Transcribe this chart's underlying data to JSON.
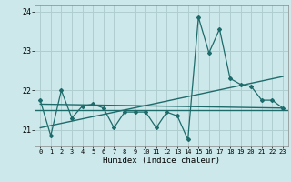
{
  "title": "",
  "xlabel": "Humidex (Indice chaleur)",
  "ylabel": "",
  "bg_color": "#cce8ea",
  "grid_color": "#b0ced0",
  "line_color": "#1e6b6b",
  "x_data": [
    0,
    1,
    2,
    3,
    4,
    5,
    6,
    7,
    8,
    9,
    10,
    11,
    12,
    13,
    14,
    15,
    16,
    17,
    18,
    19,
    20,
    21,
    22,
    23
  ],
  "y_zigzag": [
    21.75,
    20.85,
    22.0,
    21.3,
    21.6,
    21.65,
    21.55,
    21.05,
    21.45,
    21.45,
    21.45,
    21.05,
    21.45,
    21.35,
    20.75,
    23.85,
    22.95,
    23.55,
    22.3,
    22.15,
    22.1,
    21.75,
    21.75,
    21.55
  ],
  "ylim": [
    20.6,
    24.15
  ],
  "xlim": [
    -0.5,
    23.5
  ],
  "yticks": [
    21,
    22,
    23,
    24
  ],
  "xticks": [
    0,
    1,
    2,
    3,
    4,
    5,
    6,
    7,
    8,
    9,
    10,
    11,
    12,
    13,
    14,
    15,
    16,
    17,
    18,
    19,
    20,
    21,
    22,
    23
  ],
  "trend1_x": [
    0,
    23
  ],
  "trend1_y": [
    21.65,
    21.55
  ],
  "trend2_x": [
    0,
    23
  ],
  "trend2_y": [
    21.05,
    22.35
  ],
  "hline_y": 21.5
}
